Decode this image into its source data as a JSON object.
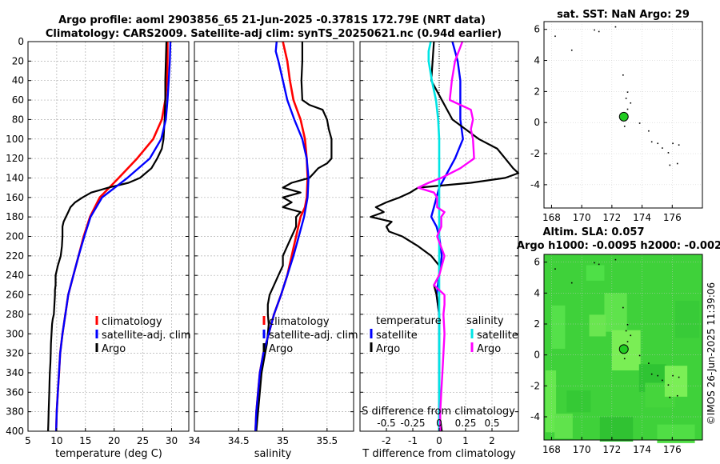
{
  "header": {
    "line1": "Argo profile: aoml 2903856_65 21-Jun-2025 -0.3781S 172.79E (NRT data)",
    "line2": "Climatology: CARS2009. Satellite-adj clim: synTS_20250621.nc (0.94d earlier)"
  },
  "colors": {
    "climatology": "#ff0000",
    "satellite_adj": "#0000ff",
    "argo": "#000000",
    "salinity_sat": "#00e5e5",
    "salinity_argo": "#ff00ff",
    "float_marker": "#22cc22"
  },
  "chart_data": [
    {
      "id": "temperature",
      "type": "line",
      "xlabel": "temperature (deg C)",
      "xlim": [
        5,
        33
      ],
      "xticks": [
        "5",
        "10",
        "15",
        "20",
        "25",
        "30"
      ],
      "ylim": [
        0,
        400
      ],
      "yticks": [
        "0",
        "20",
        "40",
        "60",
        "80",
        "100",
        "120",
        "140",
        "160",
        "180",
        "200",
        "220",
        "240",
        "260",
        "280",
        "300",
        "320",
        "340",
        "360",
        "380",
        "400"
      ],
      "legend": [
        "climatology",
        "satellite-adj. clim",
        "Argo"
      ],
      "series": [
        {
          "name": "climatology",
          "depth": [
            0,
            20,
            40,
            60,
            80,
            100,
            120,
            140,
            160,
            180,
            200,
            220,
            240,
            260,
            280,
            300,
            320,
            340,
            360,
            380,
            400
          ],
          "values": [
            29.3,
            29.3,
            29.2,
            28.9,
            28.3,
            26.8,
            24.0,
            20.8,
            17.5,
            15.8,
            14.7,
            13.8,
            12.9,
            12.0,
            11.5,
            11.0,
            10.6,
            10.4,
            10.2,
            10.0,
            9.9
          ]
        },
        {
          "name": "satellite-adj. clim",
          "depth": [
            0,
            20,
            40,
            60,
            80,
            100,
            120,
            140,
            160,
            180,
            200,
            220,
            240,
            260,
            280,
            300,
            320,
            340,
            360,
            380,
            400
          ],
          "values": [
            29.8,
            29.7,
            29.5,
            29.3,
            29.0,
            28.2,
            26.2,
            22.3,
            17.9,
            15.9,
            14.8,
            13.8,
            12.9,
            12.0,
            11.5,
            11.0,
            10.6,
            10.4,
            10.2,
            10.0,
            9.9
          ]
        },
        {
          "name": "Argo",
          "depth": [
            0,
            20,
            40,
            60,
            80,
            100,
            110,
            120,
            130,
            140,
            145,
            150,
            155,
            160,
            165,
            170,
            175,
            180,
            185,
            190,
            200,
            210,
            220,
            230,
            240,
            245,
            250,
            255,
            260,
            270,
            280,
            285,
            290,
            300,
            310,
            320,
            330,
            340,
            350,
            360,
            370,
            380,
            390,
            400
          ],
          "values": [
            29.1,
            29.0,
            28.9,
            28.9,
            28.8,
            28.6,
            28.3,
            27.5,
            26.5,
            24.5,
            22.5,
            19.0,
            16.0,
            14.5,
            13.2,
            12.4,
            12.0,
            11.6,
            11.2,
            11.0,
            11.0,
            10.9,
            10.7,
            10.2,
            9.8,
            9.8,
            9.8,
            9.7,
            9.7,
            9.6,
            9.5,
            9.3,
            9.2,
            9.1,
            9.0,
            8.95,
            8.9,
            8.8,
            8.75,
            8.7,
            8.65,
            8.6,
            8.55,
            8.5
          ]
        }
      ]
    },
    {
      "id": "salinity",
      "type": "line",
      "xlabel": "salinity",
      "xlim": [
        34,
        35.8
      ],
      "xticks": [
        "34",
        "34.5",
        "35",
        "35.5"
      ],
      "ylim": [
        0,
        400
      ],
      "legend": [
        "climatology",
        "satellite-adj. clim",
        "Argo"
      ],
      "series": [
        {
          "name": "climatology",
          "depth": [
            0,
            20,
            40,
            60,
            80,
            100,
            120,
            140,
            160,
            170,
            180,
            200,
            220,
            240,
            260,
            280,
            300,
            320,
            340,
            360,
            380,
            400
          ],
          "values": [
            35.0,
            35.05,
            35.08,
            35.12,
            35.2,
            35.25,
            35.27,
            35.28,
            35.27,
            35.25,
            35.2,
            35.15,
            35.1,
            35.05,
            34.98,
            34.9,
            34.84,
            34.78,
            34.74,
            34.72,
            34.7,
            34.69
          ]
        },
        {
          "name": "satellite-adj. clim",
          "depth": [
            0,
            10,
            20,
            40,
            60,
            80,
            100,
            120,
            140,
            160,
            180,
            200,
            220,
            240,
            260,
            280,
            300,
            320,
            340,
            360,
            380,
            400
          ],
          "values": [
            34.93,
            34.92,
            34.95,
            35.0,
            35.05,
            35.13,
            35.22,
            35.27,
            35.29,
            35.28,
            35.24,
            35.18,
            35.12,
            35.05,
            34.98,
            34.9,
            34.84,
            34.78,
            34.74,
            34.72,
            34.7,
            34.69
          ]
        },
        {
          "name": "Argo",
          "depth": [
            0,
            20,
            40,
            60,
            65,
            70,
            80,
            90,
            100,
            110,
            120,
            125,
            130,
            135,
            140,
            145,
            150,
            155,
            160,
            165,
            170,
            175,
            180,
            190,
            200,
            210,
            220,
            230,
            240,
            250,
            260,
            270,
            280,
            290,
            300,
            310,
            320,
            340,
            360,
            380,
            400
          ],
          "values": [
            35.22,
            35.22,
            35.21,
            35.22,
            35.3,
            35.45,
            35.5,
            35.52,
            35.55,
            35.55,
            35.55,
            35.5,
            35.4,
            35.35,
            35.3,
            35.1,
            35.0,
            35.2,
            35.0,
            35.1,
            35.0,
            35.2,
            35.15,
            35.15,
            35.1,
            35.05,
            35.0,
            35.0,
            34.95,
            34.9,
            34.85,
            34.83,
            34.83,
            34.84,
            34.83,
            34.82,
            34.8,
            34.76,
            34.74,
            34.72,
            34.7
          ]
        }
      ]
    },
    {
      "id": "difference",
      "type": "line",
      "xlabel": "T difference from climatology",
      "xlabel_top": "S difference from climatology",
      "xlim": [
        -3,
        3
      ],
      "xticks": [
        "-2",
        "-1",
        "0",
        "1",
        "2"
      ],
      "xticks_s": [
        "-0.5",
        "-0.25",
        "0",
        "0.25",
        "0.5"
      ],
      "ylim": [
        0,
        400
      ],
      "legend": {
        "temperature_title": "temperature",
        "salinity_title": "salinity",
        "entries": [
          "satellite",
          "Argo",
          "satellite",
          "Argo"
        ]
      },
      "series": [
        {
          "name": "temperature satellite",
          "depth": [
            0,
            10,
            20,
            40,
            60,
            80,
            100,
            120,
            140,
            150,
            160,
            170,
            180,
            190,
            200,
            220,
            240,
            260,
            280,
            300,
            320,
            340,
            360,
            380,
            400
          ],
          "values": [
            0.5,
            0.6,
            0.7,
            0.8,
            0.8,
            0.8,
            0.9,
            0.6,
            0.2,
            0.0,
            -0.1,
            -0.2,
            -0.3,
            -0.1,
            0.0,
            0.1,
            0.0,
            -0.1,
            0.0,
            0.0,
            0.0,
            0.0,
            0.0,
            0.0,
            0.0
          ]
        },
        {
          "name": "temperature Argo",
          "depth": [
            0,
            40,
            80,
            100,
            110,
            120,
            130,
            135,
            140,
            145,
            150,
            155,
            160,
            165,
            170,
            175,
            180,
            185,
            190,
            195,
            200,
            210,
            220,
            230,
            240,
            250,
            260,
            280,
            300,
            320,
            340,
            360,
            380,
            400
          ],
          "values": [
            -0.2,
            -0.3,
            0.5,
            1.5,
            2.2,
            2.5,
            2.8,
            3.0,
            2.5,
            1.2,
            -0.8,
            -1.1,
            -1.5,
            -2.0,
            -2.4,
            -2.1,
            -2.6,
            -1.8,
            -2.0,
            -1.9,
            -1.4,
            -0.8,
            -0.3,
            0.0,
            0.0,
            -0.2,
            -0.1,
            0.0,
            0.0,
            0.0,
            0.0,
            0.0,
            0.0,
            0.1
          ]
        },
        {
          "name": "salinity satellite",
          "depth": [
            0,
            10,
            20,
            40,
            60,
            80,
            100,
            120,
            140,
            160,
            180,
            200,
            220,
            240,
            260,
            280,
            300,
            320,
            340,
            360,
            380,
            400
          ],
          "values": [
            -0.08,
            -0.1,
            -0.1,
            -0.07,
            -0.03,
            -0.01,
            0.0,
            0.0,
            0.0,
            0.0,
            0.0,
            0.0,
            0.0,
            0.0,
            0.0,
            0.0,
            0.0,
            0.0,
            0.0,
            0.0,
            0.0,
            0.0
          ]
        },
        {
          "name": "salinity Argo",
          "depth": [
            0,
            20,
            40,
            60,
            65,
            70,
            80,
            90,
            100,
            120,
            130,
            140,
            145,
            150,
            155,
            160,
            170,
            175,
            180,
            190,
            200,
            220,
            240,
            250,
            260,
            270,
            280,
            300,
            320,
            340,
            360,
            380,
            400
          ],
          "values": [
            0.22,
            0.15,
            0.12,
            0.1,
            0.2,
            0.3,
            0.32,
            0.3,
            0.32,
            0.33,
            0.2,
            0.02,
            -0.1,
            -0.2,
            -0.05,
            -0.02,
            -0.02,
            0.05,
            0.02,
            0.02,
            -0.02,
            0.05,
            0.0,
            -0.05,
            0.05,
            0.05,
            0.04,
            0.05,
            0.04,
            0.03,
            0.02,
            0.01,
            0.01
          ]
        }
      ]
    }
  ],
  "map_top": {
    "title": "sat. SST: NaN Argo: 29",
    "xticks": [
      "168",
      "170",
      "172",
      "174",
      "176"
    ],
    "yticks": [
      "6",
      "4",
      "2",
      "0",
      "-2",
      "-4"
    ],
    "xlim": [
      167.5,
      178.0
    ],
    "ylim": [
      -5.5,
      6.5
    ],
    "float_lon": 172.79,
    "float_lat": 0.38
  },
  "map_bottom": {
    "title_line1": "Altim. SLA: 0.057",
    "title_line2": "Argo h1000: -0.0095 h2000: -0.002",
    "xticks": [
      "168",
      "170",
      "172",
      "174",
      "176"
    ],
    "yticks": [
      "6",
      "4",
      "2",
      "0",
      "-2",
      "-4"
    ],
    "xlim": [
      167.5,
      178.0
    ],
    "ylim": [
      -5.5,
      6.5
    ],
    "float_lon": 172.79,
    "float_lat": 0.38
  },
  "credit": "©IMOS 26-Jun-2025 11:39:06"
}
